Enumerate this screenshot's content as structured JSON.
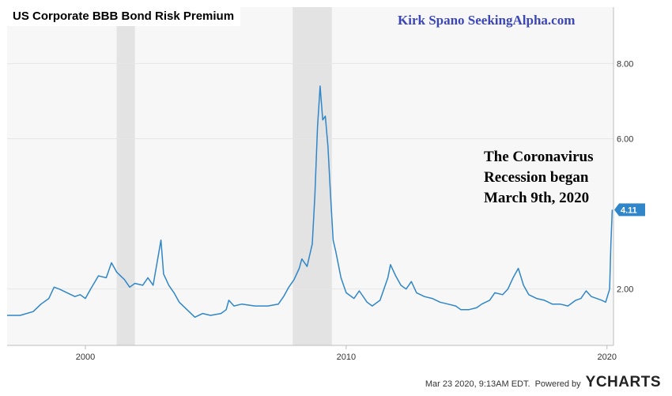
{
  "chart_data": {
    "type": "line",
    "title": "US Corporate BBB Bond Risk Premium",
    "xlabel": "",
    "ylabel": "",
    "x_range": [
      1997.0,
      2020.25
    ],
    "ylim": [
      0.5,
      9.5
    ],
    "x_ticks": [
      {
        "value": 2000,
        "label": "2000"
      },
      {
        "value": 2010,
        "label": "2010"
      },
      {
        "value": 2020,
        "label": "2020"
      }
    ],
    "y_ticks": [
      {
        "value": 2,
        "label": "2.00"
      },
      {
        "value": 6,
        "label": "6.00"
      },
      {
        "value": 8,
        "label": "8.00"
      }
    ],
    "grid": "horizontal",
    "line_color": "#2f86c8",
    "recession_color": "#e3e3e3",
    "recessions": [
      [
        2001.2,
        2001.9
      ],
      [
        2007.95,
        2009.45
      ]
    ],
    "last_value": 4.11,
    "last_value_label": "4.11",
    "series": [
      {
        "values": [
          [
            1997.0,
            1.3
          ],
          [
            1997.5,
            1.3
          ],
          [
            1998.0,
            1.4
          ],
          [
            1998.3,
            1.6
          ],
          [
            1998.6,
            1.75
          ],
          [
            1998.8,
            2.05
          ],
          [
            1999.0,
            2.0
          ],
          [
            1999.3,
            1.9
          ],
          [
            1999.6,
            1.8
          ],
          [
            1999.8,
            1.85
          ],
          [
            2000.0,
            1.75
          ],
          [
            2000.2,
            2.0
          ],
          [
            2000.5,
            2.35
          ],
          [
            2000.8,
            2.3
          ],
          [
            2001.0,
            2.7
          ],
          [
            2001.2,
            2.45
          ],
          [
            2001.5,
            2.25
          ],
          [
            2001.7,
            2.05
          ],
          [
            2001.9,
            2.15
          ],
          [
            2002.2,
            2.1
          ],
          [
            2002.4,
            2.3
          ],
          [
            2002.6,
            2.1
          ],
          [
            2002.8,
            2.9
          ],
          [
            2002.9,
            3.3
          ],
          [
            2003.0,
            2.4
          ],
          [
            2003.2,
            2.1
          ],
          [
            2003.4,
            1.9
          ],
          [
            2003.6,
            1.65
          ],
          [
            2003.9,
            1.45
          ],
          [
            2004.2,
            1.25
          ],
          [
            2004.5,
            1.35
          ],
          [
            2004.8,
            1.3
          ],
          [
            2005.2,
            1.35
          ],
          [
            2005.4,
            1.45
          ],
          [
            2005.5,
            1.7
          ],
          [
            2005.7,
            1.55
          ],
          [
            2006.0,
            1.6
          ],
          [
            2006.5,
            1.55
          ],
          [
            2007.0,
            1.55
          ],
          [
            2007.4,
            1.6
          ],
          [
            2007.6,
            1.8
          ],
          [
            2007.8,
            2.05
          ],
          [
            2008.0,
            2.25
          ],
          [
            2008.2,
            2.55
          ],
          [
            2008.3,
            2.8
          ],
          [
            2008.5,
            2.6
          ],
          [
            2008.7,
            3.2
          ],
          [
            2008.8,
            4.5
          ],
          [
            2008.9,
            6.3
          ],
          [
            2009.0,
            7.4
          ],
          [
            2009.1,
            6.5
          ],
          [
            2009.2,
            6.6
          ],
          [
            2009.3,
            5.8
          ],
          [
            2009.4,
            4.5
          ],
          [
            2009.5,
            3.3
          ],
          [
            2009.6,
            3.0
          ],
          [
            2009.8,
            2.3
          ],
          [
            2010.0,
            1.9
          ],
          [
            2010.3,
            1.75
          ],
          [
            2010.5,
            1.95
          ],
          [
            2010.8,
            1.65
          ],
          [
            2011.0,
            1.55
          ],
          [
            2011.3,
            1.7
          ],
          [
            2011.6,
            2.3
          ],
          [
            2011.7,
            2.65
          ],
          [
            2011.9,
            2.35
          ],
          [
            2012.1,
            2.1
          ],
          [
            2012.3,
            2.0
          ],
          [
            2012.5,
            2.2
          ],
          [
            2012.7,
            1.9
          ],
          [
            2013.0,
            1.8
          ],
          [
            2013.3,
            1.75
          ],
          [
            2013.6,
            1.65
          ],
          [
            2013.9,
            1.6
          ],
          [
            2014.2,
            1.55
          ],
          [
            2014.4,
            1.45
          ],
          [
            2014.7,
            1.45
          ],
          [
            2015.0,
            1.5
          ],
          [
            2015.2,
            1.6
          ],
          [
            2015.5,
            1.7
          ],
          [
            2015.7,
            1.9
          ],
          [
            2016.0,
            1.85
          ],
          [
            2016.2,
            2.0
          ],
          [
            2016.4,
            2.3
          ],
          [
            2016.6,
            2.55
          ],
          [
            2016.8,
            2.1
          ],
          [
            2017.0,
            1.85
          ],
          [
            2017.3,
            1.75
          ],
          [
            2017.6,
            1.7
          ],
          [
            2017.9,
            1.6
          ],
          [
            2018.2,
            1.6
          ],
          [
            2018.5,
            1.55
          ],
          [
            2018.8,
            1.7
          ],
          [
            2019.0,
            1.75
          ],
          [
            2019.2,
            1.95
          ],
          [
            2019.4,
            1.8
          ],
          [
            2019.6,
            1.75
          ],
          [
            2019.8,
            1.7
          ],
          [
            2019.95,
            1.65
          ],
          [
            2020.1,
            2.0
          ],
          [
            2020.15,
            3.2
          ],
          [
            2020.2,
            4.11
          ]
        ]
      }
    ]
  },
  "watermark": "Kirk Spano SeekingAlpha.com",
  "annotation": [
    "The Coronavirus",
    "Recession began",
    "March 9th, 2020"
  ],
  "footer": {
    "timestamp": "Mar 23 2020, 9:13AM EDT.",
    "powered_by": "Powered by",
    "brand": "YCHARTS"
  }
}
